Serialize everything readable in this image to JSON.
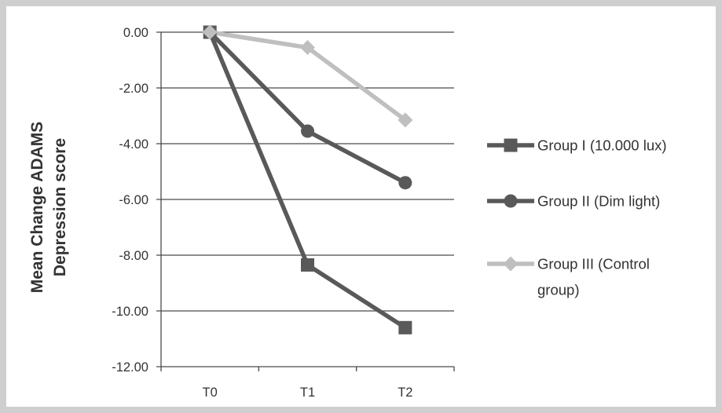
{
  "chart_data": {
    "type": "line",
    "categories": [
      "T0",
      "T1",
      "T2"
    ],
    "ylabel": [
      "Mean Change ADAMS",
      "Depression score"
    ],
    "ylim": [
      -12,
      0
    ],
    "yticks": [
      0,
      -2,
      -4,
      -6,
      -8,
      -10,
      -12
    ],
    "ytick_labels": [
      "0.00",
      "-2.00",
      "-4.00",
      "-6.00",
      "-8.00",
      "-10.00",
      "-12.00"
    ],
    "grid": true,
    "legend_position": "right",
    "series": [
      {
        "name": [
          "Group I (10.000 lux)"
        ],
        "marker": "square",
        "color": "#595959",
        "values": [
          0,
          -8.35,
          -10.6
        ]
      },
      {
        "name": [
          "Group II (Dim light)"
        ],
        "marker": "circle",
        "color": "#595959",
        "values": [
          0,
          -3.55,
          -5.4
        ]
      },
      {
        "name": [
          "Group III (Control",
          "group)"
        ],
        "marker": "diamond",
        "color": "#bfbfbf",
        "values": [
          0,
          -0.55,
          -3.15
        ]
      }
    ]
  }
}
